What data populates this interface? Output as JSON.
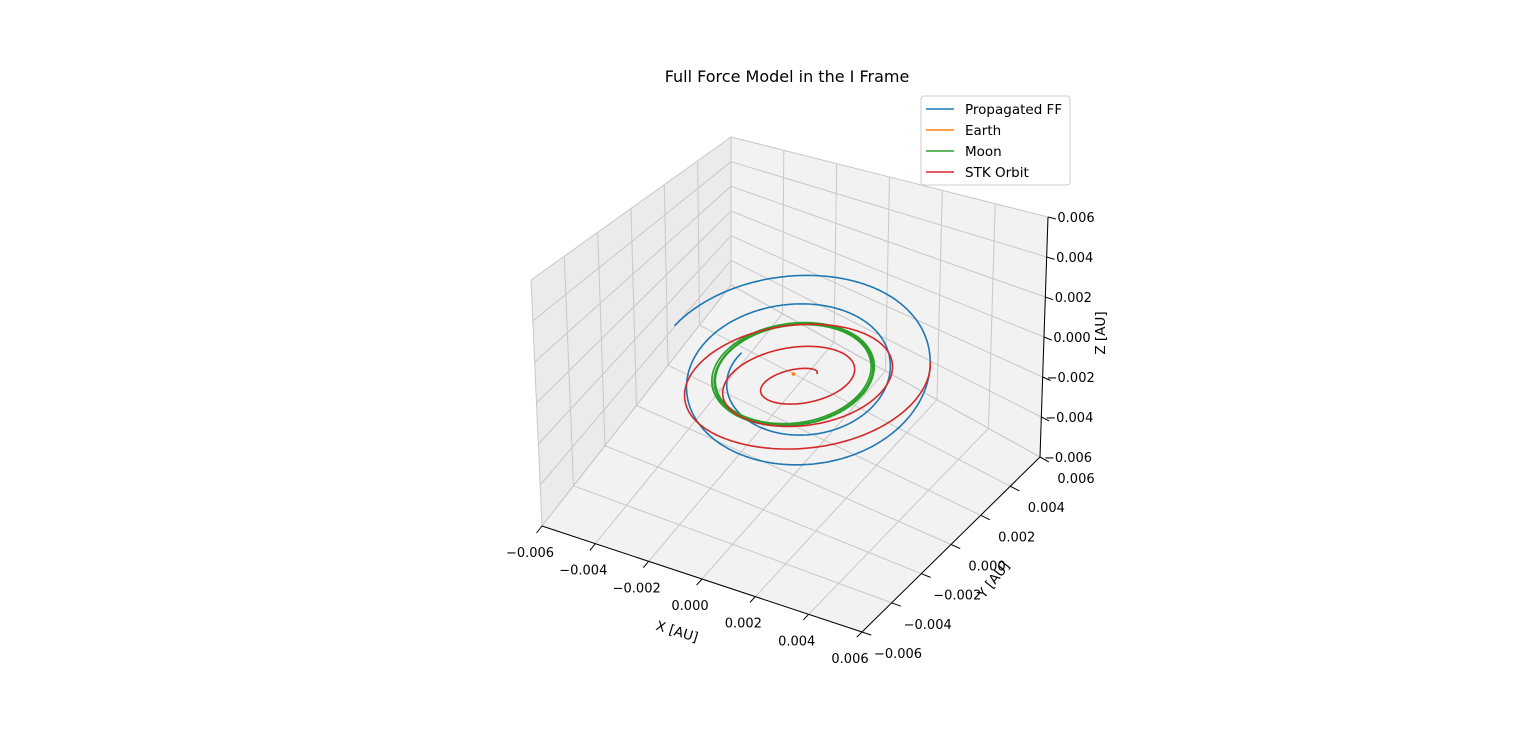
{
  "chart_data": {
    "type": "line3d",
    "title": "Full Force Model in the I Frame",
    "xlabel": "X [AU]",
    "ylabel": "Y [AU]",
    "zlabel": "Z [AU]",
    "xlim": [
      -0.006,
      0.006
    ],
    "ylim": [
      -0.006,
      0.006
    ],
    "zlim": [
      -0.006,
      0.006
    ],
    "xticks": [
      "−0.006",
      "−0.004",
      "−0.002",
      "0.000",
      "0.002",
      "0.004",
      "0.006"
    ],
    "yticks": [
      "−0.006",
      "−0.004",
      "−0.002",
      "0.000",
      "0.002",
      "0.004",
      "0.006"
    ],
    "zticks": [
      "−0.006",
      "−0.004",
      "−0.002",
      "0.000",
      "0.002",
      "0.004",
      "0.006"
    ],
    "grid": true,
    "legend_position": "top-right",
    "series": [
      {
        "name": "Propagated FF",
        "color": "#1f77b4",
        "orbit": {
          "kind": "spiral",
          "r_start": 0.0022,
          "r_end": 0.0048,
          "turns": 2.0,
          "phase": 3.1,
          "z_amp": 0.0011,
          "z_phase": 0.4,
          "cx": 0.0002,
          "cy": 0.0
        }
      },
      {
        "name": "Earth",
        "color": "#ff7f0e",
        "orbit": {
          "kind": "point",
          "x": 0.0,
          "y": 0.0,
          "z": 0.0
        }
      },
      {
        "name": "Moon",
        "color": "#2ca02c",
        "orbit": {
          "kind": "ring",
          "r": 0.00258,
          "turns": 5,
          "z_amp": 0.0006,
          "z_phase": 1.2,
          "drift": 6e-05
        }
      },
      {
        "name": "STK Orbit",
        "color": "#d62728",
        "orbit": {
          "kind": "spiral",
          "r_start": 0.0006,
          "r_end": 0.0043,
          "turns": 3.0,
          "phase": 0.6,
          "z_amp": 0.0013,
          "z_phase": 1.7,
          "cx": 0.0003,
          "cy": -0.0002
        }
      }
    ]
  }
}
